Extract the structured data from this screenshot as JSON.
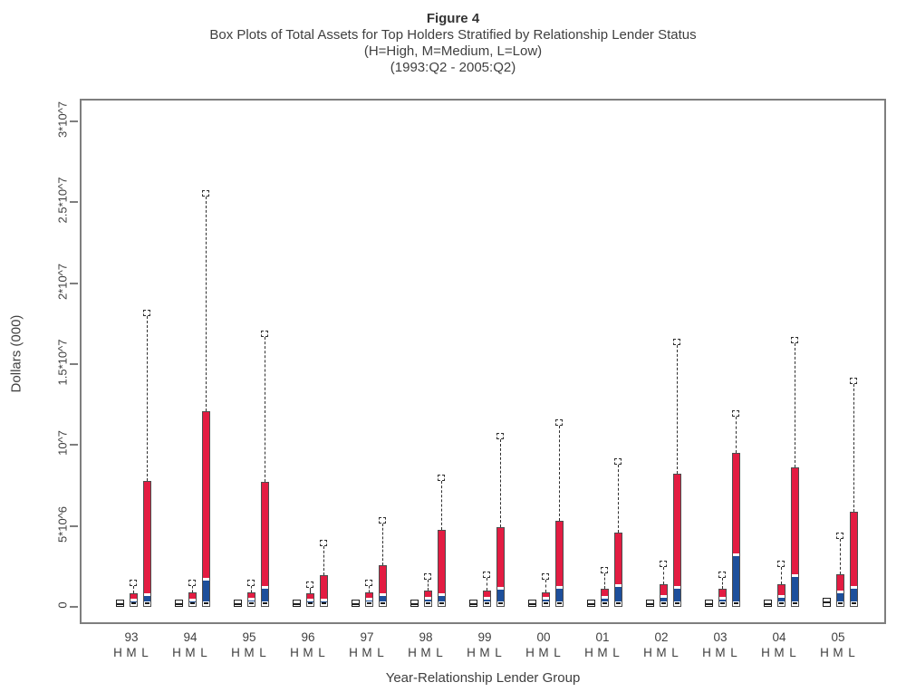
{
  "figure": {
    "title": "Figure 4",
    "subtitle_line1": "Box Plots of Total Assets for Top Holders Stratified by Relationship Lender Status",
    "subtitle_line2": "(H=High, M=Medium, L=Low)",
    "subtitle_line3": "(1993:Q2 - 2005:Q2)"
  },
  "chart_data": {
    "type": "boxplot",
    "title": "Figure 4",
    "subtitle": [
      "Box Plots of Total Assets for Top Holders Stratified by Relationship Lender Status",
      "(H=High, M=Medium, L=Low)",
      "(1993:Q2 - 2005:Q2)"
    ],
    "xlabel": "Year-Relationship Lender Group",
    "ylabel": "Dollars (000)",
    "units": "thousands of dollars",
    "ylim": [
      0,
      31300000
    ],
    "grid": false,
    "legend": "none",
    "yticks": [
      {
        "value": 0,
        "label": "0"
      },
      {
        "value": 5000000,
        "label": "5*10^6"
      },
      {
        "value": 10000000,
        "label": "10^7"
      },
      {
        "value": 15000000,
        "label": "1.5*10^7"
      },
      {
        "value": 20000000,
        "label": "2*10^7"
      },
      {
        "value": 25000000,
        "label": "2.5*10^7"
      },
      {
        "value": 30000000,
        "label": "3*10^7"
      }
    ],
    "subgroup_labels": [
      "H",
      "M",
      "L"
    ],
    "colors": {
      "upper_box_fill": "#e31c42",
      "lower_box_fill": "#1d4f9b",
      "median_band": "#ffffff",
      "whisker": "#2f2f2f",
      "box_border": "#4d4d4d",
      "plot_border": "#7e7e7e",
      "text": "#3f3f3f"
    },
    "groups": [
      {
        "year": "93",
        "boxes": {
          "H": {
            "min": 0,
            "q1": 50000,
            "median": 200000,
            "q3": 350000,
            "max": 450000
          },
          "M": {
            "min": 0,
            "q1": 100000,
            "median": 400000,
            "q3": 850000,
            "max": 1500000
          },
          "L": {
            "min": 0,
            "q1": 150000,
            "median": 730000,
            "q3": 7800000,
            "max": 18200000
          }
        }
      },
      {
        "year": "94",
        "boxes": {
          "H": {
            "min": 0,
            "q1": 50000,
            "median": 200000,
            "q3": 350000,
            "max": 450000
          },
          "M": {
            "min": 0,
            "q1": 100000,
            "median": 400000,
            "q3": 900000,
            "max": 1500000
          },
          "L": {
            "min": 0,
            "q1": 150000,
            "median": 1700000,
            "q3": 12100000,
            "max": 25600000
          }
        }
      },
      {
        "year": "95",
        "boxes": {
          "H": {
            "min": 0,
            "q1": 50000,
            "median": 200000,
            "q3": 350000,
            "max": 450000
          },
          "M": {
            "min": 0,
            "q1": 100000,
            "median": 450000,
            "q3": 900000,
            "max": 1500000
          },
          "L": {
            "min": 0,
            "q1": 150000,
            "median": 1200000,
            "q3": 7700000,
            "max": 16900000
          }
        }
      },
      {
        "year": "96",
        "boxes": {
          "H": {
            "min": 0,
            "q1": 50000,
            "median": 200000,
            "q3": 350000,
            "max": 450000
          },
          "M": {
            "min": 0,
            "q1": 100000,
            "median": 400000,
            "q3": 850000,
            "max": 1400000
          },
          "L": {
            "min": 0,
            "q1": 150000,
            "median": 400000,
            "q3": 1960000,
            "max": 4000000
          }
        }
      },
      {
        "year": "97",
        "boxes": {
          "H": {
            "min": 0,
            "q1": 50000,
            "median": 200000,
            "q3": 350000,
            "max": 450000
          },
          "M": {
            "min": 0,
            "q1": 100000,
            "median": 450000,
            "q3": 900000,
            "max": 1500000
          },
          "L": {
            "min": 0,
            "q1": 150000,
            "median": 730000,
            "q3": 2600000,
            "max": 5400000
          }
        }
      },
      {
        "year": "98",
        "boxes": {
          "H": {
            "min": 0,
            "q1": 50000,
            "median": 200000,
            "q3": 350000,
            "max": 450000
          },
          "M": {
            "min": 0,
            "q1": 100000,
            "median": 500000,
            "q3": 1000000,
            "max": 1900000
          },
          "L": {
            "min": 0,
            "q1": 150000,
            "median": 750000,
            "q3": 4760000,
            "max": 8000000
          }
        }
      },
      {
        "year": "99",
        "boxes": {
          "H": {
            "min": 0,
            "q1": 50000,
            "median": 200000,
            "q3": 350000,
            "max": 450000
          },
          "M": {
            "min": 0,
            "q1": 100000,
            "median": 500000,
            "q3": 1000000,
            "max": 2000000
          },
          "L": {
            "min": 0,
            "q1": 150000,
            "median": 1100000,
            "q3": 4900000,
            "max": 10600000
          }
        }
      },
      {
        "year": "00",
        "boxes": {
          "H": {
            "min": 0,
            "q1": 50000,
            "median": 200000,
            "q3": 350000,
            "max": 450000
          },
          "M": {
            "min": 0,
            "q1": 100000,
            "median": 500000,
            "q3": 900000,
            "max": 1900000
          },
          "L": {
            "min": 0,
            "q1": 150000,
            "median": 1200000,
            "q3": 5300000,
            "max": 11400000
          }
        }
      },
      {
        "year": "01",
        "boxes": {
          "H": {
            "min": 0,
            "q1": 50000,
            "median": 200000,
            "q3": 350000,
            "max": 450000
          },
          "M": {
            "min": 0,
            "q1": 100000,
            "median": 550000,
            "q3": 1100000,
            "max": 2300000
          },
          "L": {
            "min": 0,
            "q1": 150000,
            "median": 1300000,
            "q3": 4600000,
            "max": 9000000
          }
        }
      },
      {
        "year": "02",
        "boxes": {
          "H": {
            "min": 0,
            "q1": 50000,
            "median": 200000,
            "q3": 350000,
            "max": 450000
          },
          "M": {
            "min": 0,
            "q1": 100000,
            "median": 600000,
            "q3": 1400000,
            "max": 2700000
          },
          "L": {
            "min": 0,
            "q1": 150000,
            "median": 1200000,
            "q3": 8200000,
            "max": 16400000
          }
        }
      },
      {
        "year": "03",
        "boxes": {
          "H": {
            "min": 0,
            "q1": 50000,
            "median": 200000,
            "q3": 350000,
            "max": 450000
          },
          "M": {
            "min": 0,
            "q1": 100000,
            "median": 500000,
            "q3": 1100000,
            "max": 2000000
          },
          "L": {
            "min": 0,
            "q1": 150000,
            "median": 3200000,
            "q3": 9500000,
            "max": 12000000
          }
        }
      },
      {
        "year": "04",
        "boxes": {
          "H": {
            "min": 0,
            "q1": 50000,
            "median": 200000,
            "q3": 350000,
            "max": 450000
          },
          "M": {
            "min": 0,
            "q1": 100000,
            "median": 600000,
            "q3": 1400000,
            "max": 2700000
          },
          "L": {
            "min": 0,
            "q1": 150000,
            "median": 1900000,
            "q3": 8600000,
            "max": 16500000
          }
        }
      },
      {
        "year": "05",
        "boxes": {
          "H": {
            "min": 0,
            "q1": 50000,
            "median": 250000,
            "q3": 450000,
            "max": 550000
          },
          "M": {
            "min": 0,
            "q1": 100000,
            "median": 900000,
            "q3": 2000000,
            "max": 4400000
          },
          "L": {
            "min": 0,
            "q1": 150000,
            "median": 1200000,
            "q3": 5900000,
            "max": 14000000
          }
        }
      }
    ]
  }
}
